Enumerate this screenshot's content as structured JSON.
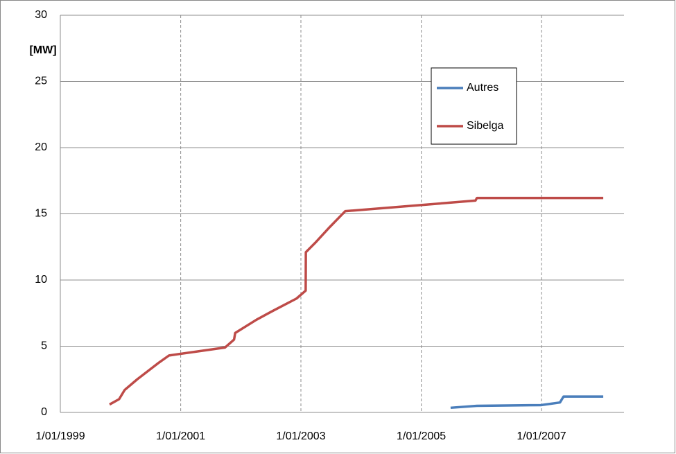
{
  "chart_data": {
    "type": "line",
    "ylabel": "[MW]",
    "xlim": [
      "1999-01-01",
      "2008-05-16"
    ],
    "xticks": [
      {
        "value": "1999-01-01",
        "label": "1/01/1999"
      },
      {
        "value": "2001-01-01",
        "label": "1/01/2001"
      },
      {
        "value": "2003-01-01",
        "label": "1/01/2003"
      },
      {
        "value": "2005-01-01",
        "label": "1/01/2005"
      },
      {
        "value": "2007-01-01",
        "label": "1/01/2007"
      }
    ],
    "ylim": [
      0,
      30
    ],
    "yticks": [
      0,
      5,
      10,
      15,
      20,
      25,
      30
    ],
    "grid": true,
    "legend": "upper right",
    "series": [
      {
        "name": "Autres",
        "color": "#4a7ebb",
        "x": [
          "2005-06-28",
          "2005-12-05",
          "2006-12-28",
          "2007-04-23",
          "2007-05-15",
          "2008-01-11"
        ],
        "values": [
          0.35,
          0.5,
          0.55,
          0.75,
          1.2,
          1.2
        ]
      },
      {
        "name": "Sibelga",
        "color": "#be4b48",
        "x": [
          "1999-10-27",
          "1999-12-24",
          "2000-01-27",
          "2000-04-12",
          "2000-08-15",
          "2000-10-22",
          "2001-09-27",
          "2001-11-21",
          "2001-11-28",
          "2002-04-06",
          "2002-07-19",
          "2002-12-05",
          "2003-01-30",
          "2003-01-31",
          "2003-03-28",
          "2003-06-25",
          "2003-09-27",
          "2005-11-26",
          "2005-12-05",
          "2008-01-11"
        ],
        "values": [
          0.6,
          1.0,
          1.7,
          2.5,
          3.7,
          4.3,
          4.9,
          5.5,
          6.0,
          7.0,
          7.7,
          8.6,
          9.2,
          12.1,
          12.8,
          14.0,
          15.2,
          16.0,
          16.2,
          16.2
        ]
      }
    ]
  }
}
